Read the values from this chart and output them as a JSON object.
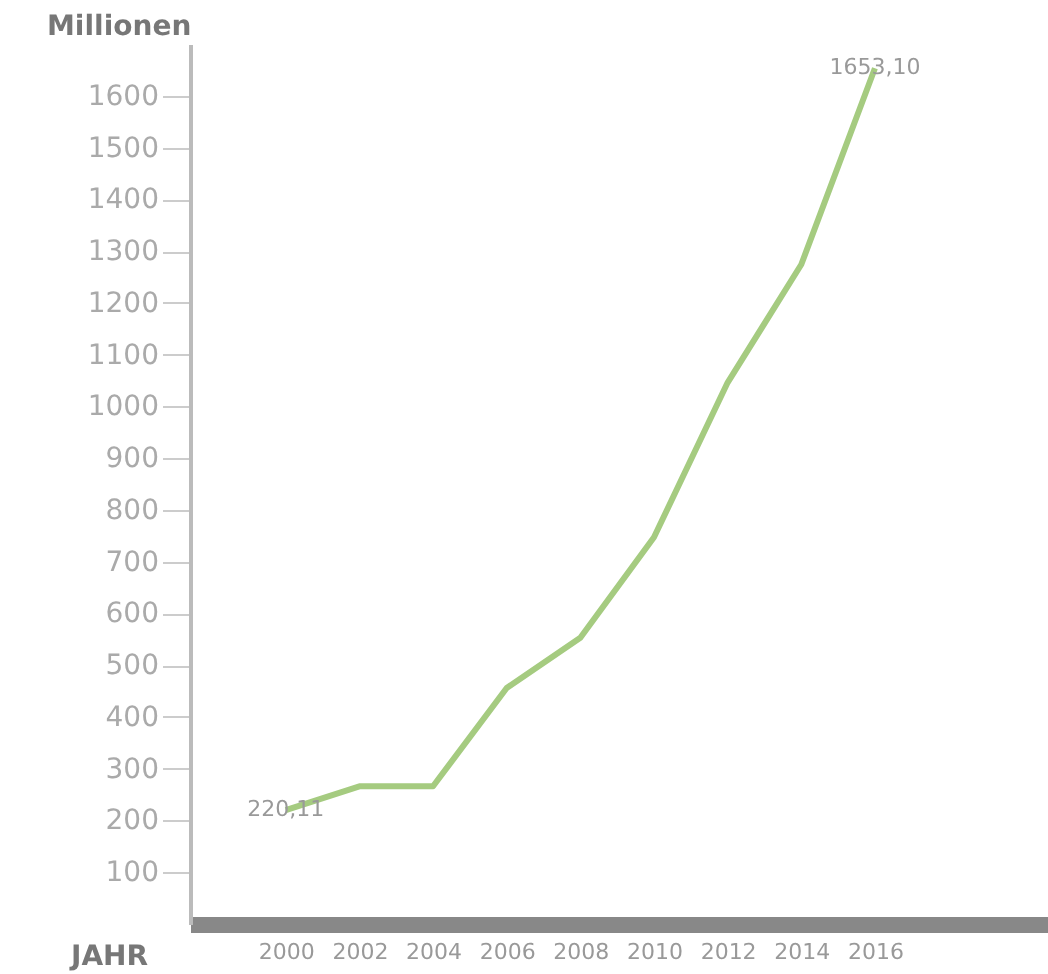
{
  "chart_data": {
    "type": "line",
    "xlabel": "JAHR",
    "ylabel": "Millionen",
    "x": [
      2000,
      2002,
      2004,
      2006,
      2008,
      2010,
      2012,
      2014,
      2016
    ],
    "series": [
      {
        "color": "#a5cb80",
        "values": [
          220.11,
          266,
          266,
          456,
          553,
          747,
          1046,
          1274,
          1653.1
        ],
        "value_labels": [
          "220,11",
          null,
          null,
          null,
          null,
          null,
          null,
          null,
          "1653,10"
        ]
      }
    ],
    "xlim": [
      1997.4,
      2020.7
    ],
    "xticks": [
      2000,
      2002,
      2004,
      2006,
      2008,
      2010,
      2012,
      2014,
      2016
    ],
    "ylim": [
      0,
      1700
    ],
    "yticks": [
      100,
      200,
      300,
      400,
      500,
      600,
      700,
      800,
      900,
      1000,
      1100,
      1200,
      1300,
      1400,
      1500,
      1600
    ],
    "grid": false,
    "marker": "none",
    "line_style": "solid"
  }
}
